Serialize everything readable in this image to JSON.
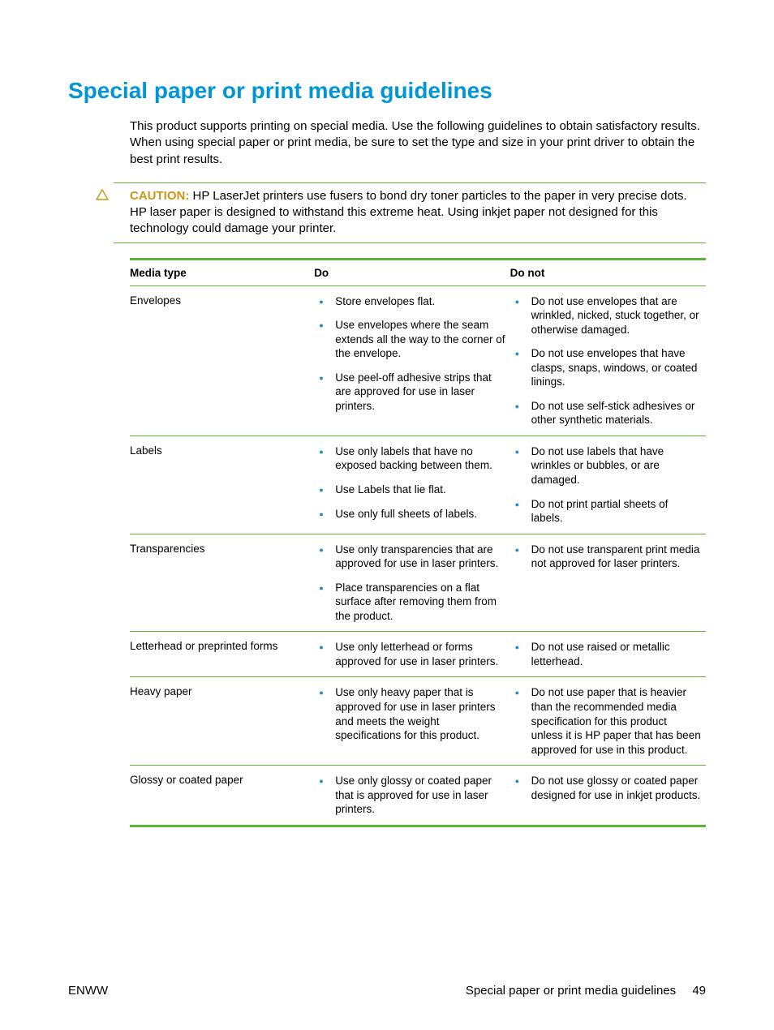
{
  "colors": {
    "accent": "#5fb338",
    "bullet": "#1a8cc9",
    "caution_icon_stroke": "#c99714",
    "caution_label": "#c99714",
    "heading": "#0096d6",
    "text": "#000000"
  },
  "heading": "Special paper or print media guidelines",
  "intro": "This product supports printing on special media. Use the following guidelines to obtain satisfactory results. When using special paper or print media, be sure to set the type and size in your print driver to obtain the best print results.",
  "caution": {
    "label": "CAUTION:",
    "text": "HP LaserJet printers use fusers to bond dry toner particles to the paper in very precise dots. HP laser paper is designed to withstand this extreme heat. Using inkjet paper not designed for this technology could damage your printer."
  },
  "table": {
    "headers": [
      "Media type",
      "Do",
      "Do not"
    ],
    "rows": [
      {
        "media": "Envelopes",
        "do": [
          "Store envelopes flat.",
          "Use envelopes where the seam extends all the way to the corner of the envelope.",
          "Use peel-off adhesive strips that are approved for use in laser printers."
        ],
        "donot": [
          "Do not use envelopes that are wrinkled, nicked, stuck together, or otherwise damaged.",
          "Do not use envelopes that have clasps, snaps, windows, or coated linings.",
          "Do not use self-stick adhesives or other synthetic materials."
        ]
      },
      {
        "media": "Labels",
        "do": [
          "Use only labels that have no exposed backing between them.",
          "Use Labels that lie flat.",
          "Use only full sheets of labels."
        ],
        "donot": [
          "Do not use labels that have wrinkles or bubbles, or are damaged.",
          "Do not print partial sheets of labels."
        ]
      },
      {
        "media": "Transparencies",
        "do": [
          "Use only transparencies that are approved for use in laser printers.",
          "Place transparencies on a flat surface after removing them from the product."
        ],
        "donot": [
          "Do not use transparent print media not approved for laser printers."
        ]
      },
      {
        "media": "Letterhead or preprinted forms",
        "do": [
          "Use only letterhead or forms approved for use in laser printers."
        ],
        "donot": [
          "Do not use raised or metallic letterhead."
        ]
      },
      {
        "media": "Heavy paper",
        "do": [
          "Use only heavy paper that is approved for use in laser printers and meets the weight specifications for this product."
        ],
        "donot": [
          "Do not use paper that is heavier than the recommended media specification for this product unless it is HP paper that has been approved for use in this product."
        ]
      },
      {
        "media": "Glossy or coated paper",
        "do": [
          "Use only glossy or coated paper that is approved for use in laser printers."
        ],
        "donot": [
          "Do not use glossy or coated paper designed for use in inkjet products."
        ]
      }
    ]
  },
  "footer": {
    "left": "ENWW",
    "right": "Special paper or print media guidelines",
    "page": "49"
  }
}
